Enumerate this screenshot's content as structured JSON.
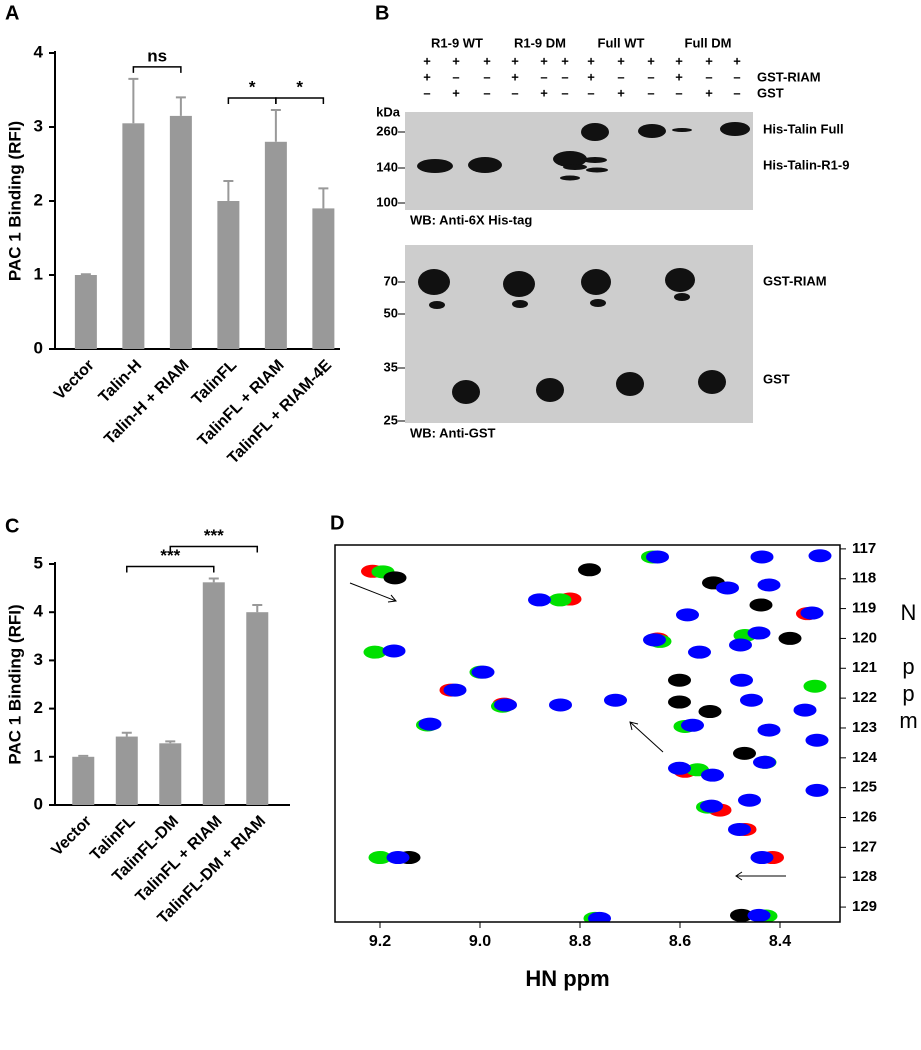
{
  "chart_data": [
    {
      "type": "bar",
      "panel_label": "A",
      "y_label": "PAC 1 Binding (RFI)",
      "categories": [
        "Vector",
        "Talin-H",
        "Talin-H + RIAM",
        "TalinFL",
        "TalinFL + RIAM",
        "TalinFL + RIAM-4E"
      ],
      "values": [
        1,
        3.05,
        3.15,
        2.0,
        2.8,
        1.9
      ],
      "errors": [
        0.01,
        0.6,
        0.25,
        0.27,
        0.43,
        0.27
      ],
      "color": "#999999",
      "ylim": [
        0,
        4
      ],
      "yticks": [
        0,
        1,
        2,
        3,
        4
      ],
      "significance": [
        {
          "label": "ns",
          "between": [
            "Talin-H",
            "Talin-H + RIAM"
          ]
        },
        {
          "label": "*",
          "between": [
            "TalinFL",
            "TalinFL + RIAM"
          ]
        },
        {
          "label": "*",
          "between": [
            "TalinFL + RIAM",
            "TalinFL + RIAM-4E"
          ]
        }
      ]
    },
    {
      "type": "bar",
      "panel_label": "C",
      "y_label": "PAC 1 Binding (RFI)",
      "categories": [
        "Vector",
        "TalinFL",
        "TalinFL-DM",
        "TalinFL + RIAM",
        "TalinFL-DM + RIAM"
      ],
      "values": [
        1.0,
        1.42,
        1.28,
        4.62,
        4.0
      ],
      "errors": [
        0.02,
        0.08,
        0.04,
        0.08,
        0.15
      ],
      "color": "#999999",
      "ylim": [
        0,
        5
      ],
      "yticks": [
        0,
        1,
        2,
        3,
        4,
        5
      ],
      "significance": [
        {
          "label": "***",
          "between": [
            "TalinFL",
            "TalinFL + RIAM"
          ]
        },
        {
          "label": "***",
          "between": [
            "TalinFL-DM",
            "TalinFL-DM + RIAM"
          ]
        }
      ]
    },
    {
      "type": "scatter",
      "panel_label": "D",
      "x_label": "HN ppm",
      "y_label": "N ppm",
      "xlim": [
        9.29,
        8.28
      ],
      "ylim": [
        116.87,
        129.5
      ],
      "xticks": [
        9.2,
        {
          "value": 9,
          "label": "9.0"
        },
        8.8,
        8.6,
        8.4
      ],
      "yticks": [
        117,
        118,
        119,
        120,
        121,
        122,
        123,
        124,
        125,
        126,
        127,
        128,
        129
      ],
      "series": [
        {
          "color": "#ff0000",
          "x": [
            9.215,
            9.058,
            8.952,
            8.82,
            8.645,
            8.59,
            8.52,
            8.47,
            8.345,
            8.415
          ],
          "values": [
            117.75,
            121.73,
            122.2,
            118.68,
            120.02,
            124.45,
            125.75,
            126.4,
            119.17,
            127.34
          ]
        },
        {
          "color": "#00e000",
          "x": [
            9.194,
            9.2,
            9.21,
            9.105,
            8.955,
            8.998,
            8.84,
            8.655,
            8.64,
            8.59,
            8.565,
            8.545,
            8.47,
            8.43,
            8.33,
            8.77,
            8.428
          ],
          "values": [
            117.77,
            127.34,
            120.46,
            122.9,
            122.27,
            121.13,
            118.71,
            117.27,
            120.1,
            122.95,
            124.4,
            125.65,
            119.9,
            124.15,
            121.6,
            129.38,
            129.3
          ]
        },
        {
          "color": "#000000",
          "x": [
            9.17,
            8.781,
            8.533,
            8.438,
            8.601,
            8.601,
            8.471,
            9.142,
            8.477,
            8.54,
            8.38
          ],
          "values": [
            117.97,
            117.7,
            118.14,
            118.88,
            121.4,
            122.13,
            123.85,
            127.34,
            129.28,
            122.45,
            120.0
          ]
        },
        {
          "color": "#0000ff",
          "x": [
            8.645,
            8.436,
            8.32,
            8.881,
            8.505,
            8.422,
            8.651,
            8.442,
            8.336,
            8.585,
            8.561,
            8.479,
            9.172,
            8.994,
            9.05,
            8.839,
            8.729,
            8.949,
            9.1,
            8.575,
            8.477,
            8.457,
            8.422,
            8.35,
            8.326,
            8.601,
            8.535,
            8.431,
            8.537,
            8.461,
            8.326,
            9.164,
            8.481,
            8.436,
            8.761,
            8.442
          ],
          "values": [
            117.27,
            117.27,
            117.23,
            118.71,
            118.31,
            118.21,
            120.05,
            119.82,
            119.15,
            119.21,
            120.46,
            120.22,
            120.42,
            121.13,
            121.73,
            122.23,
            122.07,
            122.23,
            122.87,
            122.91,
            121.4,
            122.07,
            123.07,
            122.4,
            123.41,
            124.35,
            124.58,
            124.15,
            125.62,
            125.42,
            125.09,
            127.34,
            126.4,
            127.34,
            129.38,
            129.28
          ]
        }
      ]
    }
  ],
  "blot": {
    "panel_label": "B",
    "groups": [
      "R1-9 WT",
      "R1-9 DM",
      "Full WT",
      "Full DM"
    ],
    "rows": [
      {
        "signs": [
          "+",
          "+",
          "+",
          "+",
          "+",
          "+",
          "+",
          "+",
          "+",
          "+",
          "+",
          "+"
        ]
      },
      {
        "label": "GST-RIAM",
        "signs": [
          "+",
          "–",
          "–",
          "+",
          "–",
          "–",
          "+",
          "–",
          "–",
          "+",
          "–",
          "–"
        ]
      },
      {
        "label": "GST",
        "signs": [
          "–",
          "+",
          "–",
          "–",
          "+",
          "–",
          "–",
          "+",
          "–",
          "–",
          "+",
          "–"
        ]
      }
    ],
    "top": {
      "unit": "kDa",
      "markers": [
        "260",
        "140",
        "100"
      ],
      "bands": [
        "His-Talin Full",
        "His-Talin-R1-9"
      ],
      "wb": "WB: Anti-6X His-tag"
    },
    "bottom": {
      "markers": [
        "70",
        "50",
        "35",
        "25"
      ],
      "bands": [
        "GST-RIAM",
        "GST"
      ],
      "wb": "WB: Anti-GST"
    }
  }
}
